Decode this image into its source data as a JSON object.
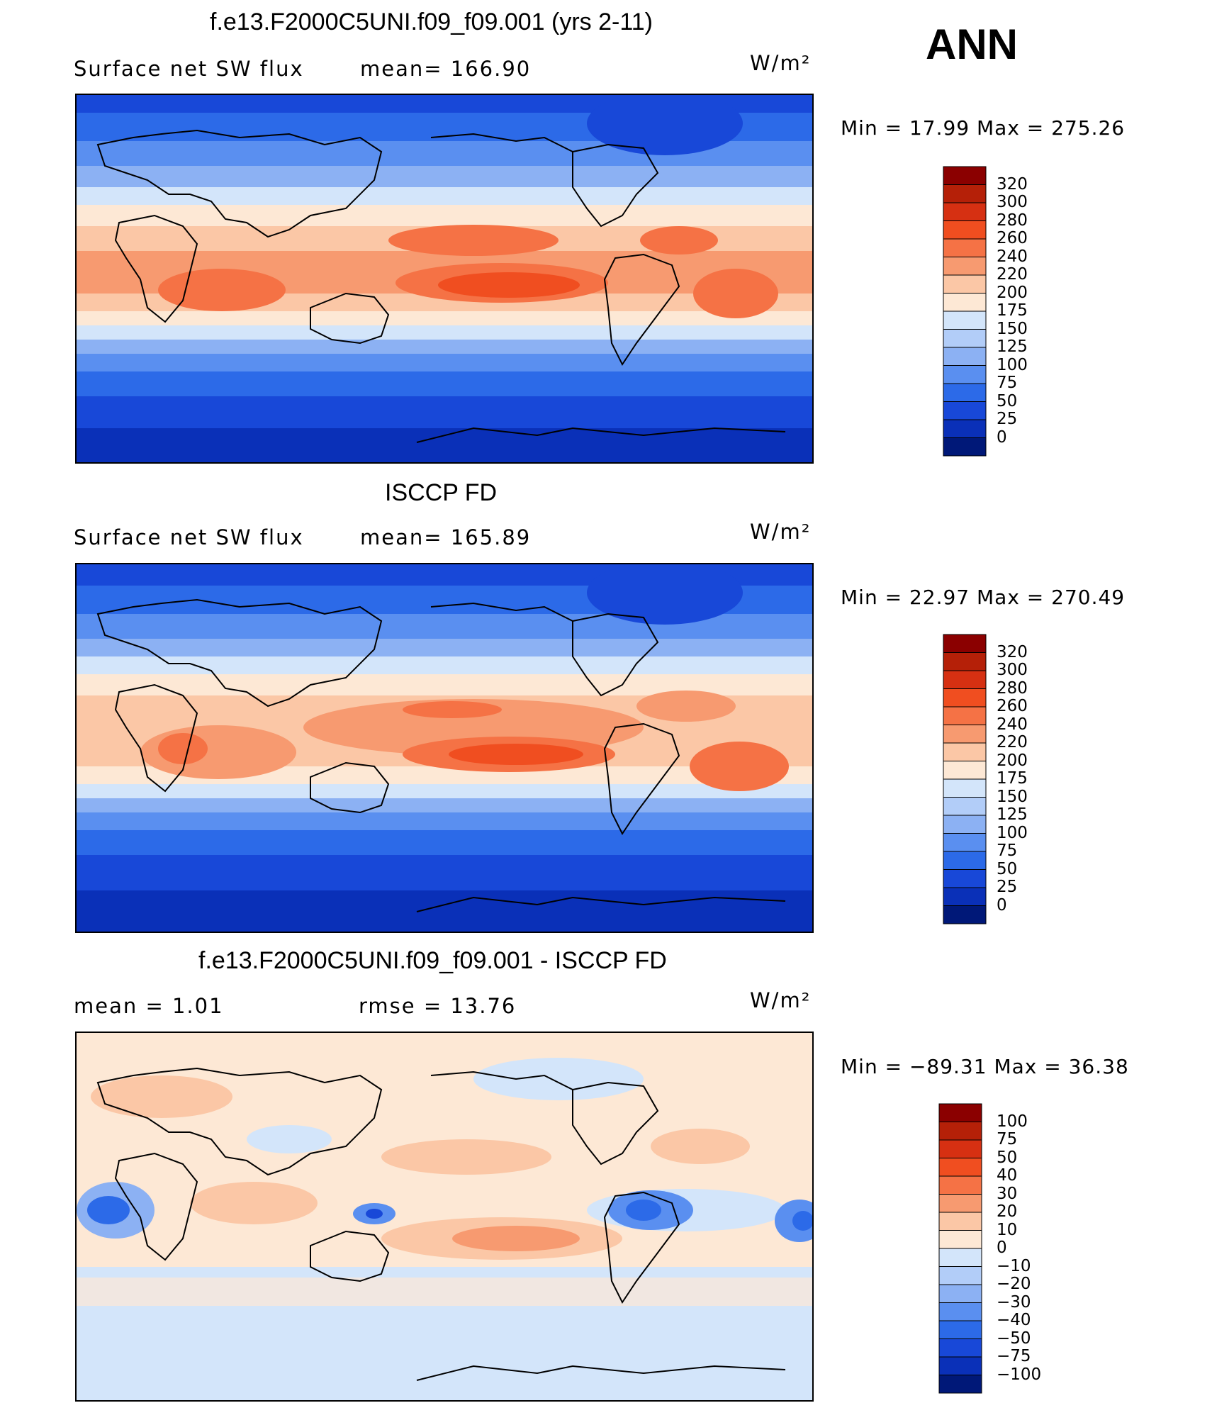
{
  "season": "ANN",
  "panels": [
    {
      "title": "f.e13.F2000C5UNI.f09_f09.001 (yrs 2-11)",
      "field_label": "Surface net SW flux",
      "stat_label": "mean= 166.90",
      "units": "W/m²",
      "minmax": "Min =   17.99 Max = 275.26",
      "colorbar_labels": [
        "320",
        "300",
        "280",
        "260",
        "240",
        "220",
        "200",
        "175",
        "150",
        "125",
        "100",
        "75",
        "50",
        "25",
        "0"
      ],
      "colorbar_colors": [
        "#8b0000",
        "#b52008",
        "#d63012",
        "#f04e20",
        "#f57245",
        "#f79a70",
        "#fbc7a6",
        "#fde8d5",
        "#d3e5fa",
        "#b2cdf8",
        "#8cb1f3",
        "#5a8ff0",
        "#2c6ae8",
        "#1848d8",
        "#0a30b8",
        "#001878"
      ]
    },
    {
      "title": "ISCCP FD",
      "field_label": "Surface net SW flux",
      "stat_label": "mean= 165.89",
      "units": "W/m²",
      "minmax": "Min =   22.97 Max = 270.49",
      "colorbar_labels": [
        "320",
        "300",
        "280",
        "260",
        "240",
        "220",
        "200",
        "175",
        "150",
        "125",
        "100",
        "75",
        "50",
        "25",
        "0"
      ],
      "colorbar_colors": [
        "#8b0000",
        "#b52008",
        "#d63012",
        "#f04e20",
        "#f57245",
        "#f79a70",
        "#fbc7a6",
        "#fde8d5",
        "#d3e5fa",
        "#b2cdf8",
        "#8cb1f3",
        "#5a8ff0",
        "#2c6ae8",
        "#1848d8",
        "#0a30b8",
        "#001878"
      ]
    },
    {
      "title": "f.e13.F2000C5UNI.f09_f09.001 - ISCCP FD",
      "field_label": "mean =    1.01",
      "stat_label": "rmse =   13.76",
      "units": "W/m²",
      "minmax": "Min = −89.31 Max =   36.38",
      "colorbar_labels": [
        "100",
        "75",
        "50",
        "40",
        "30",
        "20",
        "10",
        "0",
        "−10",
        "−20",
        "−30",
        "−40",
        "−50",
        "−75",
        "−100"
      ],
      "colorbar_colors": [
        "#8b0000",
        "#b52008",
        "#d63012",
        "#f04e20",
        "#f57245",
        "#f79a70",
        "#fbc7a6",
        "#fde8d5",
        "#d3e5fa",
        "#b2cdf8",
        "#8cb1f3",
        "#5a8ff0",
        "#2c6ae8",
        "#1848d8",
        "#0a30b8",
        "#001878"
      ]
    }
  ]
}
